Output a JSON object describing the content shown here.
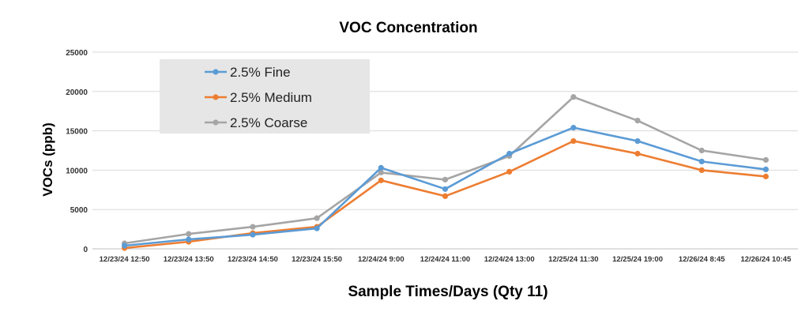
{
  "chart_data": {
    "type": "line",
    "title": "VOC Concentration",
    "xlabel": "Sample Times/Days  (Qty 11)",
    "ylabel": "VOCs (ppb)",
    "ylim": [
      0,
      25000
    ],
    "yticks": [
      "0",
      "5000",
      "10000",
      "15000",
      "20000",
      "25000"
    ],
    "grid": true,
    "legend_position": "top-left",
    "categories": [
      "12/23/24 12:50",
      "12/23/24 13:50",
      "12/23/24 14:50",
      "12/23/24 15:50",
      "12/24/24 9:00",
      "12/24/24 11:00",
      "12/24/24 13:00",
      "12/25/24 11:30",
      "12/25/24 19:00",
      "12/26/24 8:45",
      "12/26/24 10:45"
    ],
    "series": [
      {
        "name": "2.5% Fine",
        "color": "#5B9BD5",
        "values": [
          400,
          1200,
          1800,
          2600,
          10300,
          7600,
          12100,
          15400,
          13700,
          11100,
          10100
        ]
      },
      {
        "name": "2.5% Medium",
        "color": "#ED7D31",
        "values": [
          100,
          900,
          2000,
          2800,
          8700,
          6700,
          9800,
          13700,
          12100,
          10000,
          9200
        ]
      },
      {
        "name": "2.5% Coarse",
        "color": "#A5A5A5",
        "values": [
          700,
          1900,
          2800,
          3900,
          9700,
          8800,
          11800,
          19300,
          16300,
          12500,
          11300
        ]
      }
    ]
  }
}
